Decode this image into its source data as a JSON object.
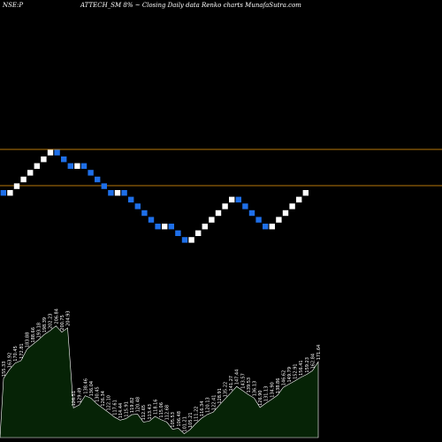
{
  "header": {
    "exchange_label": "NSE:P",
    "title": "ATTECH_SM 8% ~  Closing Daily data  Renko  charts MunafaSutra.com"
  },
  "colors": {
    "background": "#000000",
    "up_brick": "#ffffff",
    "down_brick": "#1e6fe8",
    "level_line": "#b8780a",
    "area_fill": "#062306",
    "area_stroke": "#ffffff",
    "label_text": "#ffffff"
  },
  "chart_data": {
    "type": "renko",
    "title": "ATTECH_SM 8% ~  Closing Daily data  Renko  charts MunafaSutra.com",
    "brick_percent": 8,
    "reference_lines": [
      "upper-level",
      "lower-level"
    ],
    "bricks": [
      "down",
      "up",
      "up",
      "up",
      "up",
      "up",
      "up",
      "up",
      "down",
      "down",
      "down",
      "up",
      "down",
      "down",
      "down",
      "down",
      "down",
      "up",
      "down",
      "down",
      "down",
      "down",
      "down",
      "down",
      "up",
      "down",
      "down",
      "down",
      "up",
      "up",
      "up",
      "up",
      "up",
      "up",
      "up",
      "down",
      "down",
      "down",
      "down",
      "down",
      "up",
      "up",
      "up",
      "up",
      "up",
      "up"
    ],
    "close_price_area": {
      "values": [
        155.33,
        163.92,
        170.45,
        172.81,
        183.88,
        188.66,
        193.18,
        198.39,
        202.23,
        206.84,
        200.75,
        204.93,
        126.51,
        129.49,
        138.46,
        136.04,
        130.45,
        126.34,
        122.1,
        117.61,
        114.44,
        115.91,
        119.82,
        120.48,
        112.65,
        113.43,
        118.16,
        115.06,
        112.68,
        105.53,
        106.48,
        101.21,
        105.21,
        111.22,
        116.34,
        120.13,
        122.41,
        128.91,
        135.22,
        141.27,
        147.44,
        143.57,
        139.53,
        136.13,
        126.9,
        131.13,
        134.9,
        138.86,
        146.62,
        149.79,
        152.91,
        156.41,
        159.23,
        162.84,
        171.64
      ],
      "labels": [
        "155.33",
        "163.92",
        "170.45",
        "172.81",
        "183.88",
        "188.66",
        "193.18",
        "198.39",
        "202.23",
        "206.84",
        "200.75",
        "204.93",
        "126.51",
        "129.49",
        "138.46",
        "136.04",
        "130.45",
        "126.34",
        "122.10",
        "117.61",
        "114.44",
        "115.91",
        "119.82",
        "120.48",
        "112.65",
        "113.43",
        "118.16",
        "115.06",
        "112.68",
        "105.53",
        "106.48",
        "101.21",
        "105.21",
        "111.22",
        "116.34",
        "120.13",
        "122.41",
        "128.91",
        "135.22",
        "141.27",
        "147.44",
        "143.57",
        "139.53",
        "136.13",
        "126.90",
        "131.13",
        "134.90",
        "138.86",
        "146.62",
        "149.79",
        "152.91",
        "156.41",
        "159.23",
        "162.84",
        "171.64"
      ]
    }
  }
}
